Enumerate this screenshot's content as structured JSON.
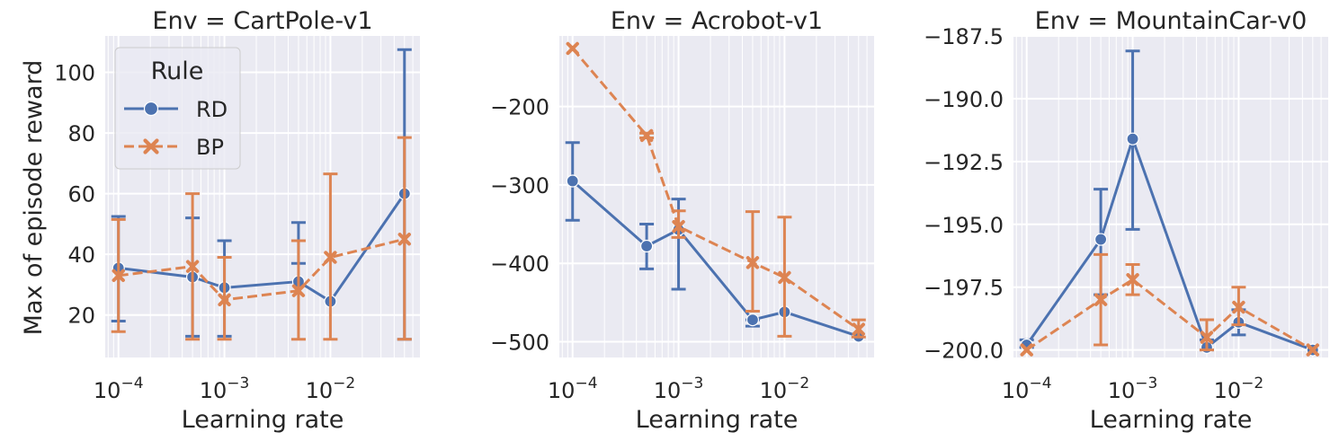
{
  "figure": {
    "ylabel": "Max of episode reward"
  },
  "legend": {
    "title": "Rule",
    "entries": [
      "RD",
      "BP"
    ]
  },
  "colors": {
    "RD": "#4c72b0",
    "BP": "#dd8452",
    "panel_bg": "#eaeaf2",
    "grid": "#ffffff",
    "text": "#262626"
  },
  "chart_data": [
    {
      "type": "line",
      "title": "Env = CartPole-v1",
      "xlabel": "Learning rate",
      "ylabel": "Max of episode reward",
      "xscale": "log",
      "xlim": [
        7.5e-05,
        0.07
      ],
      "ylim": [
        6,
        112
      ],
      "xticks": [
        {
          "value": 0.0001,
          "base": "10",
          "exp": "−4"
        },
        {
          "value": 0.001,
          "base": "10",
          "exp": "−3"
        },
        {
          "value": 0.01,
          "base": "10",
          "exp": "−2"
        }
      ],
      "yticks": [
        20,
        40,
        60,
        80,
        100
      ],
      "ytick_labels": [
        "20",
        "40",
        "60",
        "80",
        "100"
      ],
      "grid": true,
      "legend": "top-left",
      "series": [
        {
          "name": "RD",
          "marker": "circle",
          "linestyle": "solid",
          "x": [
            0.0001,
            0.0005,
            0.001,
            0.005,
            0.01,
            0.05
          ],
          "y": [
            35.5,
            32.5,
            29.0,
            31.0,
            24.5,
            60.0
          ],
          "err_low": [
            18,
            13,
            13,
            37,
            24.5,
            12
          ],
          "err_high": [
            52.5,
            52,
            44.5,
            50.5,
            24.5,
            107.5
          ]
        },
        {
          "name": "BP",
          "marker": "x",
          "linestyle": "dashed",
          "x": [
            0.0001,
            0.0005,
            0.001,
            0.005,
            0.01,
            0.05
          ],
          "y": [
            33.0,
            36.0,
            25.0,
            28.0,
            39.0,
            45.0
          ],
          "err_low": [
            14.5,
            12,
            12,
            12,
            12,
            12
          ],
          "err_high": [
            51.5,
            60,
            39,
            44.5,
            66.5,
            78.5
          ]
        }
      ]
    },
    {
      "type": "line",
      "title": "Env = Acrobot-v1",
      "xlabel": "Learning rate",
      "xscale": "log",
      "xlim": [
        7.5e-05,
        0.07
      ],
      "ylim": [
        -520,
        -110
      ],
      "xticks": [
        {
          "value": 0.0001,
          "base": "10",
          "exp": "−4"
        },
        {
          "value": 0.001,
          "base": "10",
          "exp": "−3"
        },
        {
          "value": 0.01,
          "base": "10",
          "exp": "−2"
        }
      ],
      "yticks": [
        -500,
        -400,
        -300,
        -200
      ],
      "ytick_labels": [
        "−500",
        "−400",
        "−300",
        "−200"
      ],
      "grid": true,
      "series": [
        {
          "name": "RD",
          "marker": "circle",
          "linestyle": "solid",
          "x": [
            0.0001,
            0.0005,
            0.001,
            0.005,
            0.01,
            0.05
          ],
          "y": [
            -295,
            -378,
            -357,
            -472,
            -462,
            -493
          ],
          "err_low": [
            -345,
            -407,
            -433,
            -480,
            -462,
            -493
          ],
          "err_high": [
            -246,
            -350,
            -318,
            -472,
            -462,
            -493
          ]
        },
        {
          "name": "BP",
          "marker": "x",
          "linestyle": "dashed",
          "x": [
            0.0001,
            0.0005,
            0.001,
            0.005,
            0.01,
            0.05
          ],
          "y": [
            -126,
            -237,
            -353,
            -399,
            -418,
            -484
          ],
          "err_low": [
            -126,
            -240,
            -367,
            -461,
            -493,
            -494
          ],
          "err_high": [
            -126,
            -234,
            -333,
            -334,
            -341,
            -472
          ]
        }
      ]
    },
    {
      "type": "line",
      "title": "Env = MountainCar-v0",
      "xlabel": "Learning rate",
      "xscale": "log",
      "xlim": [
        7.5e-05,
        0.07
      ],
      "ylim": [
        -200.3,
        -187.5
      ],
      "xticks": [
        {
          "value": 0.0001,
          "base": "10",
          "exp": "−4"
        },
        {
          "value": 0.001,
          "base": "10",
          "exp": "−3"
        },
        {
          "value": 0.01,
          "base": "10",
          "exp": "−2"
        }
      ],
      "yticks": [
        -200.0,
        -197.5,
        -195.0,
        -192.5,
        -190.0,
        -187.5
      ],
      "ytick_labels": [
        "−200.0",
        "−197.5",
        "−195.0",
        "−192.5",
        "−190.0",
        "−187.5"
      ],
      "grid": true,
      "series": [
        {
          "name": "RD",
          "marker": "circle",
          "linestyle": "solid",
          "x": [
            0.0001,
            0.0005,
            0.001,
            0.005,
            0.01,
            0.05
          ],
          "y": [
            -199.8,
            -195.6,
            -191.6,
            -199.9,
            -198.9,
            -200.0
          ],
          "err_low": [
            -199.9,
            -197.8,
            -195.2,
            -200.0,
            -199.4,
            -200.0
          ],
          "err_high": [
            -199.6,
            -193.6,
            -188.1,
            -199.6,
            -198.4,
            -200.0
          ]
        },
        {
          "name": "BP",
          "marker": "x",
          "linestyle": "dashed",
          "x": [
            0.0001,
            0.0005,
            0.001,
            0.005,
            0.01,
            0.05
          ],
          "y": [
            -200.0,
            -198.0,
            -197.2,
            -199.5,
            -198.3,
            -200.0
          ],
          "err_low": [
            -200.0,
            -199.8,
            -197.8,
            -200.0,
            -199.0,
            -200.0
          ],
          "err_high": [
            -200.0,
            -196.2,
            -196.6,
            -198.8,
            -197.5,
            -200.0
          ]
        }
      ]
    }
  ]
}
